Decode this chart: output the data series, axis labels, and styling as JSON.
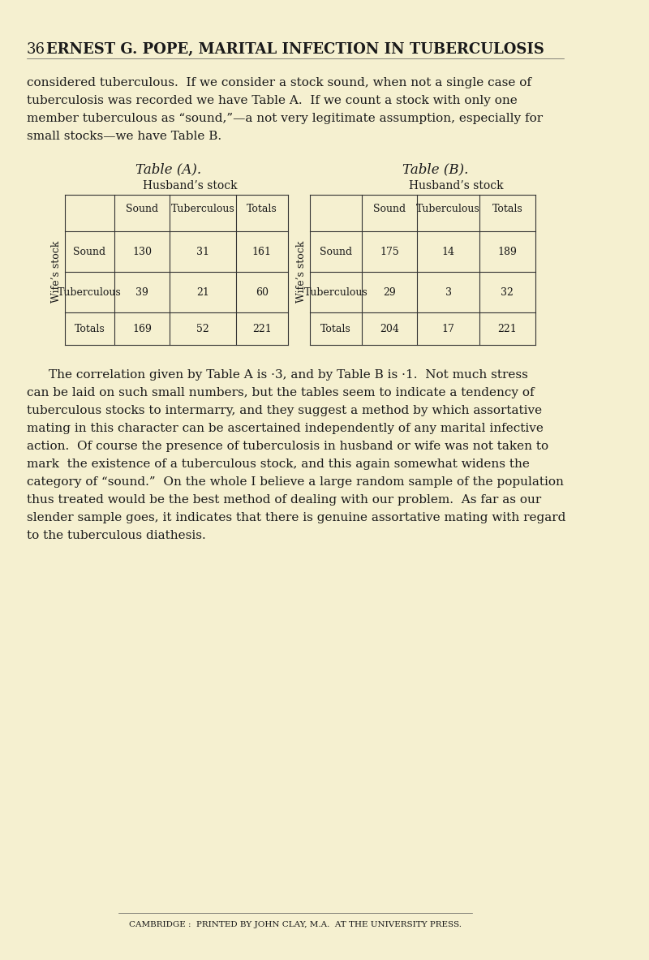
{
  "bg_color": "#f5f0d0",
  "page_number": "36",
  "header": "ERNEST G. POPE, MARITAL INFECTION IN TUBERCULOSIS",
  "intro_text": "considered tuberculous.  If we consider a stock sound, when not a single case of\ntuberculosis was recorded we have Table A.  If we count a stock with only one\nmember tuberculous as “sound,”—a not very legitimate assumption, especially for\nsmall stocks—we have Table B.",
  "table_a_title": "Table (A).",
  "table_b_title": "Table (B).",
  "husband_stock": "Husband’s stock",
  "wife_stock": "Wife’s stock",
  "col_headers": [
    "Sound",
    "Tuberculous",
    "Totals"
  ],
  "row_labels": [
    "Sound",
    "Tuberculous",
    "Totals"
  ],
  "table_a_data": [
    [
      130,
      31,
      161
    ],
    [
      39,
      21,
      60
    ],
    [
      169,
      52,
      221
    ]
  ],
  "table_b_data": [
    [
      175,
      14,
      189
    ],
    [
      29,
      3,
      32
    ],
    [
      204,
      17,
      221
    ]
  ],
  "body_text": "The correlation given by Table A is ·3, and by Table B is ·1.  Not much stress\ncan be laid on such small numbers, but the tables seem to indicate a tendency of\ntuberculous stocks to intermarry, and they suggest a method by which assortative\nmating in this character can be ascertained independently of any marital infective\naction.  Of course the presence of tuberculosis in husband or wife was not taken to\nmark  the existence of a tuberculous stock, and this again somewhat widens the\ncategory of “sound.”  On the whole I believe a large random sample of the population\nthus treated would be the best method of dealing with our problem.  As far as our\nslender sample goes, it indicates that there is genuine assortative mating with regard\nto the tuberculous diathesis.",
  "footer": "CAMBRIDGE :  PRINTED BY JOHN CLAY, M.A.  AT THE UNIVERSITY PRESS.",
  "text_color": "#1a1a1a",
  "table_border_color": "#333333",
  "line_color": "#555555"
}
